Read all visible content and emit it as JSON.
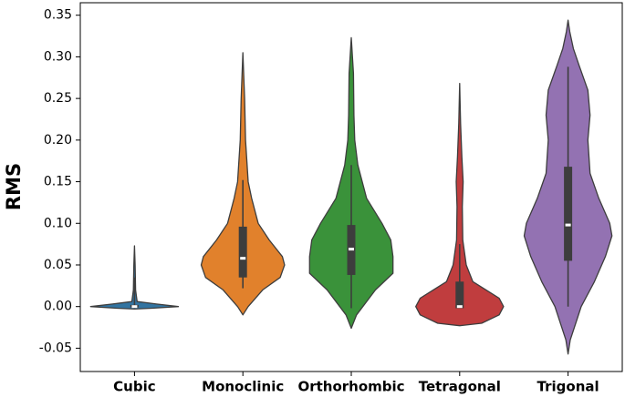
{
  "chart_data": {
    "type": "violin",
    "y_label": "RMS",
    "categories": [
      "Cubic",
      "Monoclinic",
      "Orthorhombic",
      "Tetragonal",
      "Trigonal"
    ],
    "ylim": [
      -0.078,
      0.365
    ],
    "yticks": [
      {
        "value": -0.05,
        "label": "-0.05"
      },
      {
        "value": 0,
        "label": "0.00"
      },
      {
        "value": 0.05,
        "label": "0.05"
      },
      {
        "value": 0.1,
        "label": "0.10"
      },
      {
        "value": 0.15,
        "label": "0.15"
      },
      {
        "value": 0.2,
        "label": "0.20"
      },
      {
        "value": 0.25,
        "label": "0.25"
      },
      {
        "value": 0.3,
        "label": "0.30"
      },
      {
        "value": 0.35,
        "label": "0.35"
      }
    ],
    "violins": [
      {
        "color": "#3274a1",
        "density_y": [
          -0.003,
          -0.002,
          0,
          0.003,
          0.006,
          0.02,
          0.05,
          0.073
        ],
        "density": [
          0,
          0.4,
          1.0,
          0.5,
          0.06,
          0.025,
          0.015,
          0
        ],
        "whisker": [
          -0.002,
          0.035
        ],
        "q1": -0.001,
        "median": 0.0,
        "q3": 0.002
      },
      {
        "color": "#e1812c",
        "density_y": [
          -0.01,
          0.0,
          0.02,
          0.035,
          0.05,
          0.06,
          0.08,
          0.1,
          0.13,
          0.15,
          0.2,
          0.25,
          0.305
        ],
        "density": [
          0,
          0.12,
          0.45,
          0.85,
          0.95,
          0.9,
          0.6,
          0.35,
          0.2,
          0.12,
          0.06,
          0.04,
          0
        ],
        "whisker": [
          0.022,
          0.152
        ],
        "q1": 0.035,
        "median": 0.058,
        "q3": 0.096
      },
      {
        "color": "#3a923a",
        "density_y": [
          -0.026,
          -0.01,
          0.02,
          0.04,
          0.06,
          0.08,
          0.1,
          0.13,
          0.17,
          0.2,
          0.23,
          0.28,
          0.323
        ],
        "density": [
          0,
          0.12,
          0.55,
          0.95,
          0.95,
          0.9,
          0.7,
          0.35,
          0.15,
          0.08,
          0.06,
          0.05,
          0
        ],
        "whisker": [
          -0.002,
          0.17
        ],
        "q1": 0.038,
        "median": 0.069,
        "q3": 0.098
      },
      {
        "color": "#c03d3e",
        "density_y": [
          -0.023,
          -0.02,
          -0.01,
          0.0,
          0.01,
          0.02,
          0.03,
          0.05,
          0.08,
          0.12,
          0.15,
          0.18,
          0.22,
          0.268
        ],
        "density": [
          0,
          0.5,
          0.9,
          1.0,
          0.9,
          0.6,
          0.3,
          0.15,
          0.07,
          0.06,
          0.08,
          0.05,
          0.02,
          0
        ],
        "whisker": [
          -0.002,
          0.075
        ],
        "q1": -0.002,
        "median": 0.0,
        "q3": 0.03
      },
      {
        "color": "#9372b2",
        "density_y": [
          -0.057,
          -0.04,
          0.0,
          0.03,
          0.06,
          0.085,
          0.1,
          0.13,
          0.16,
          0.2,
          0.23,
          0.26,
          0.29,
          0.31,
          0.33,
          0.344
        ],
        "density": [
          0,
          0.05,
          0.3,
          0.6,
          0.85,
          1.0,
          0.95,
          0.7,
          0.5,
          0.45,
          0.5,
          0.45,
          0.25,
          0.12,
          0.04,
          0
        ],
        "whisker": [
          0.0,
          0.288
        ],
        "q1": 0.055,
        "median": 0.098,
        "q3": 0.168
      }
    ]
  }
}
